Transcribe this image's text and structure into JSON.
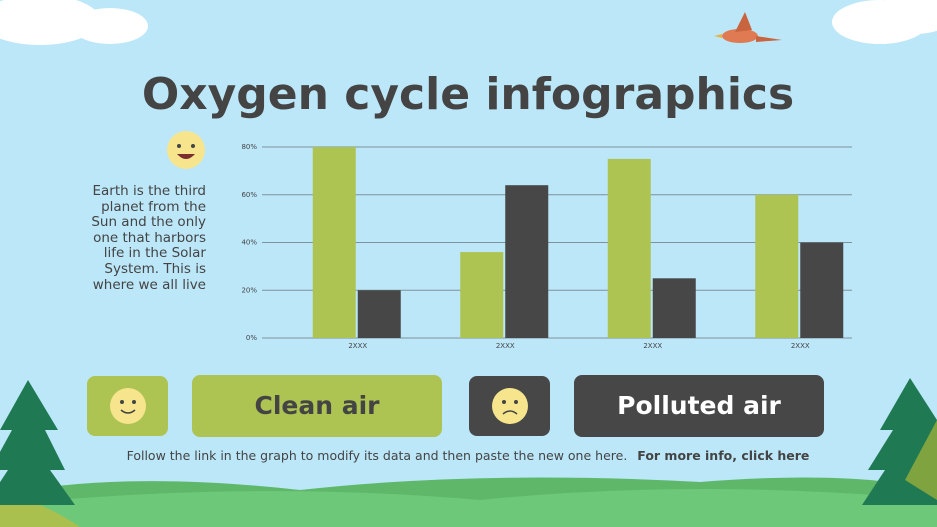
{
  "chart_data": {
    "type": "bar",
    "title": "Oxygen cycle infographics",
    "description": "Earth is the third planet from the Sun and the only one that harbors life in the Solar System. This is where we all live",
    "footnote": "Follow the link in the graph to modify its data and then paste the new one here.",
    "link": "For more info, click here",
    "categories": [
      "2XXX",
      "2XXX",
      "2XXX",
      "2XXX"
    ],
    "series": [
      {
        "name": "Clean air",
        "color": "#adc453",
        "values": [
          80,
          36,
          75,
          60
        ]
      },
      {
        "name": "Polluted air",
        "color": "#474747",
        "values": [
          20,
          64,
          25,
          40
        ]
      }
    ],
    "ylim": [
      0,
      80
    ],
    "yticks": [
      {
        "value": 0,
        "label": "0%"
      },
      {
        "value": 20,
        "label": "20%"
      },
      {
        "value": 40,
        "label": "40%"
      },
      {
        "value": 60,
        "label": "60%"
      },
      {
        "value": 80,
        "label": "80%"
      }
    ],
    "grid": true
  }
}
